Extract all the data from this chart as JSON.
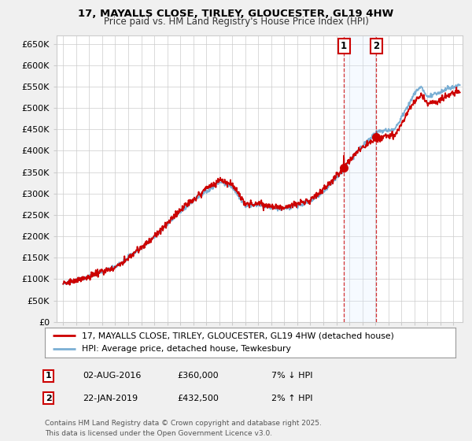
{
  "title_line1": "17, MAYALLS CLOSE, TIRLEY, GLOUCESTER, GL19 4HW",
  "title_line2": "Price paid vs. HM Land Registry's House Price Index (HPI)",
  "ylabel_ticks": [
    "£0",
    "£50K",
    "£100K",
    "£150K",
    "£200K",
    "£250K",
    "£300K",
    "£350K",
    "£400K",
    "£450K",
    "£500K",
    "£550K",
    "£600K",
    "£650K"
  ],
  "ytick_values": [
    0,
    50000,
    100000,
    150000,
    200000,
    250000,
    300000,
    350000,
    400000,
    450000,
    500000,
    550000,
    600000,
    650000
  ],
  "ylim": [
    0,
    670000
  ],
  "xlim_start": 1994.5,
  "xlim_end": 2025.7,
  "sale1_x": 2016.58,
  "sale1_y": 360000,
  "sale2_x": 2019.06,
  "sale2_y": 432500,
  "vline1_x": 2016.58,
  "vline2_x": 2019.06,
  "legend_line1": "17, MAYALLS CLOSE, TIRLEY, GLOUCESTER, GL19 4HW (detached house)",
  "legend_line2": "HPI: Average price, detached house, Tewkesbury",
  "annot1_date": "02-AUG-2016",
  "annot1_price": "£360,000",
  "annot1_hpi": "7% ↓ HPI",
  "annot2_date": "22-JAN-2019",
  "annot2_price": "£432,500",
  "annot2_hpi": "2% ↑ HPI",
  "footer": "Contains HM Land Registry data © Crown copyright and database right 2025.\nThis data is licensed under the Open Government Licence v3.0.",
  "hpi_color": "#7bafd4",
  "price_color": "#cc0000",
  "shade_color": "#ddeeff",
  "bg_color": "#f0f0f0",
  "plot_bg_color": "#ffffff",
  "grid_color": "#cccccc"
}
